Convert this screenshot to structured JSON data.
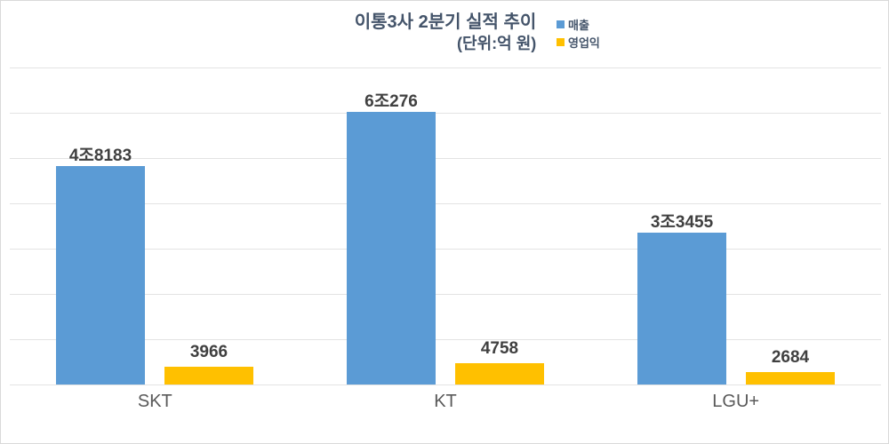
{
  "chart_data": {
    "type": "bar",
    "title": "이통3사 2분기 실적 추이",
    "subtitle": "(단위:억 원)",
    "categories": [
      "SKT",
      "KT",
      "LGU+"
    ],
    "series": [
      {
        "name": "매출",
        "color": "#5B9BD5",
        "values": [
          48183,
          60276,
          33455
        ],
        "labels": [
          "4조8183",
          "6조276",
          "3조3455"
        ]
      },
      {
        "name": "영업익",
        "color": "#FFC000",
        "values": [
          3966,
          4758,
          2684
        ],
        "labels": [
          "3966",
          "4758",
          "2684"
        ]
      }
    ],
    "ylim": [
      0,
      70000
    ],
    "gridline_interval": 10000,
    "grid": true,
    "legend_position": "top-right"
  },
  "colors": {
    "grid": "#e3e3e3",
    "title": "#44546A",
    "value_label": "#404040",
    "axis_label": "#595959",
    "border": "#d9d9d9"
  }
}
